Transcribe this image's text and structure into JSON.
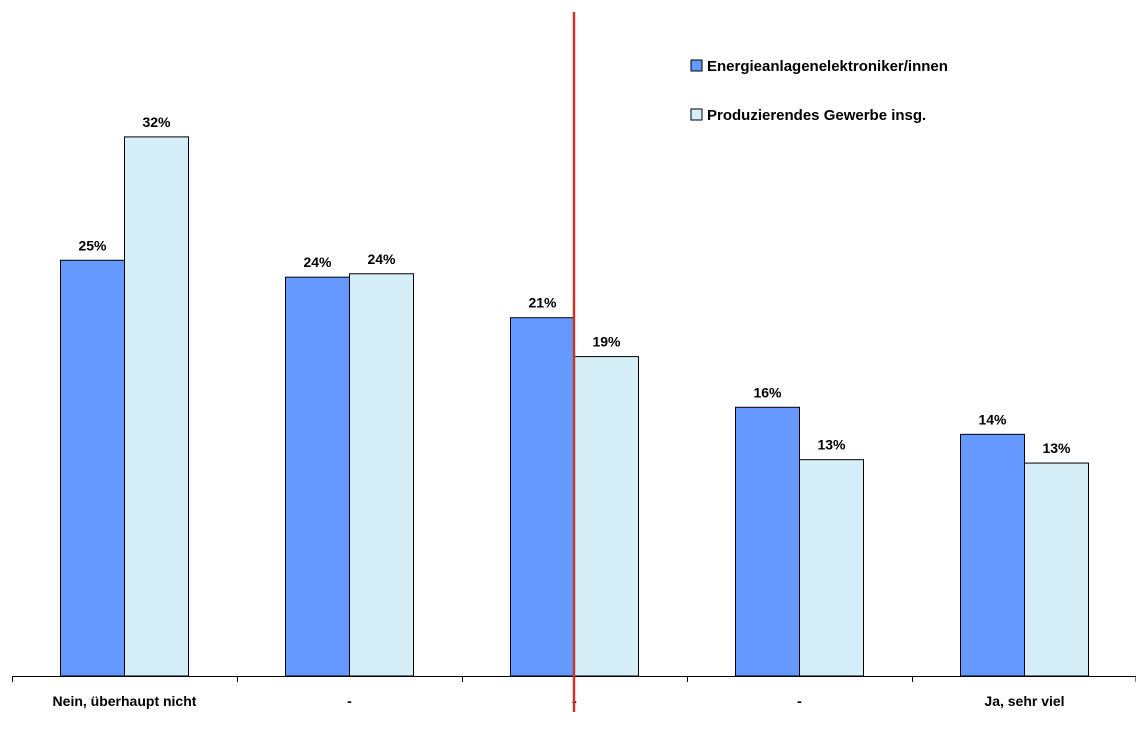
{
  "chart_data": {
    "type": "bar",
    "categories": [
      "Nein, überhaupt nicht",
      "-",
      "-",
      "-",
      "Ja, sehr viel"
    ],
    "series": [
      {
        "name": "Energieanlagenelektroniker/innen",
        "values": [
          25,
          24,
          21,
          16,
          14
        ],
        "labels": [
          "25%",
          "24%",
          "21%",
          "16%",
          "14%"
        ],
        "color": "#6699ff"
      },
      {
        "name": "Produzierendes Gewerbe insg.",
        "values": [
          32,
          24,
          19,
          13,
          13
        ],
        "labels": [
          "32%",
          "24%",
          "19%",
          "13%",
          "13%"
        ],
        "color": "#d6eef8"
      }
    ],
    "exact_values": {
      "Energieanlagenelektroniker/innen": [
        24.6,
        23.6,
        21.2,
        15.9,
        14.3
      ],
      "Produzierendes Gewerbe insg.": [
        31.9,
        23.8,
        18.9,
        12.8,
        12.6
      ]
    },
    "ylim": [
      0,
      40
    ],
    "y_axis_visible": false,
    "grid": false,
    "legend_position": "top-right",
    "divider": {
      "position": "between categories 3 and 4 (centered on middle category)",
      "color": "#c0392b"
    }
  }
}
